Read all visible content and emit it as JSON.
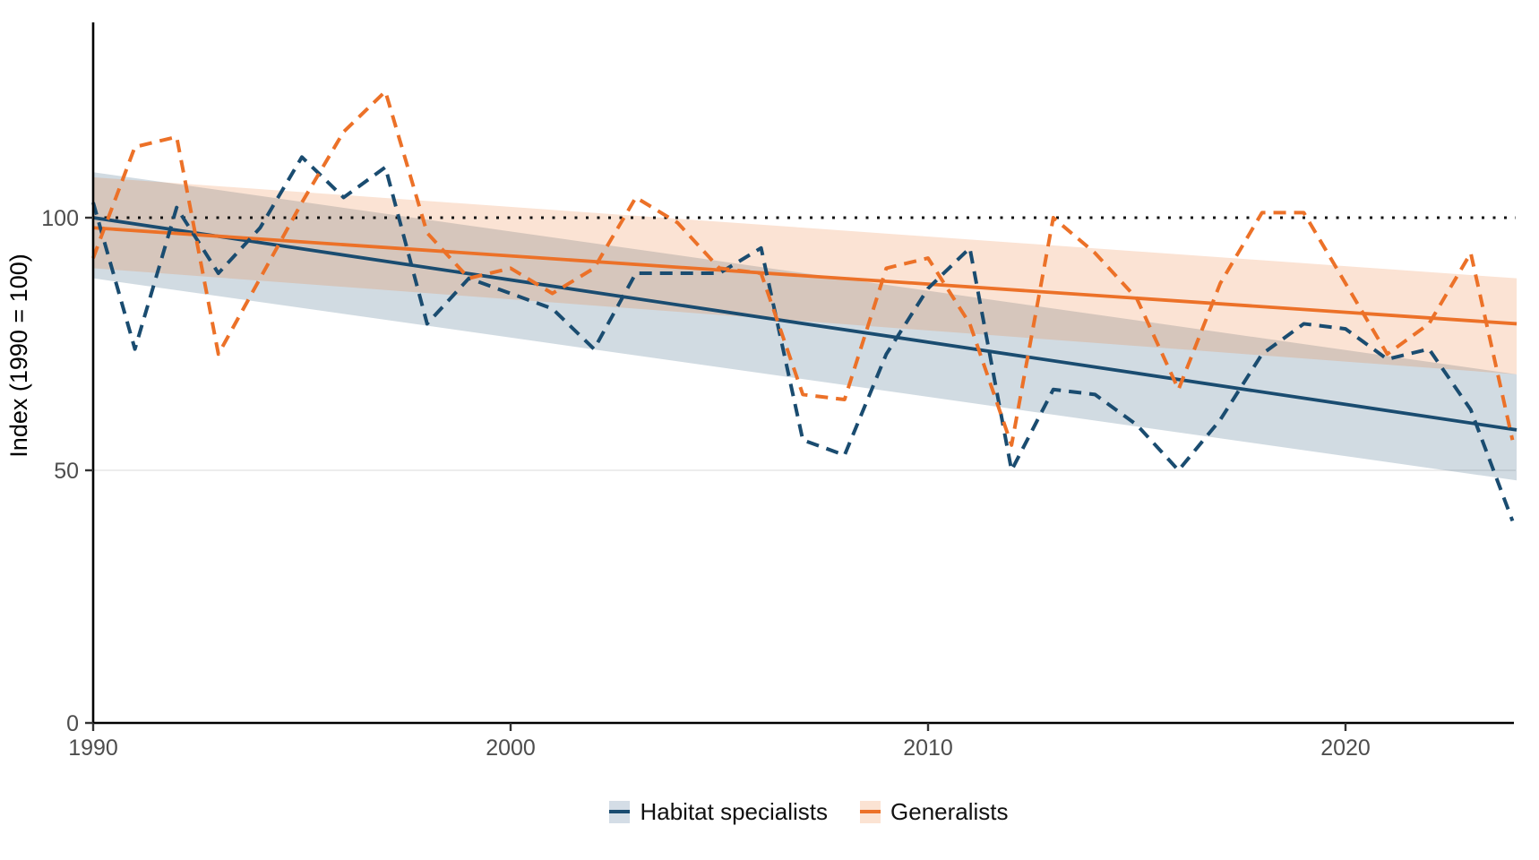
{
  "figure": {
    "y_axis_title": "Index (1990 = 100)",
    "background_color": "#ffffff",
    "axis_color": "#000000",
    "tick_label_color": "#4d4d4d",
    "grid_color": "#e7e7e7",
    "reference_line_color": "#111111"
  },
  "legend": {
    "items": [
      {
        "label": "Habitat specialists",
        "line_color": "#1a4c70",
        "fill_color": "#d4dde6"
      },
      {
        "label": "Generalists",
        "line_color": "#ec7128",
        "fill_color": "#fbe3d3"
      }
    ]
  },
  "chart_data": {
    "type": "line",
    "title": "",
    "xlabel": "",
    "ylabel": "Index (1990 = 100)",
    "xlim": [
      1990,
      2024.1
    ],
    "ylim": [
      0,
      138.5
    ],
    "x_ticks": [
      1990,
      2000,
      2010,
      2020
    ],
    "y_ticks": [
      0,
      50,
      100
    ],
    "grid": "single light horizontal gridline at y=50",
    "legend_position": "bottom",
    "reference_line_y": 100,
    "years": [
      1990,
      1991,
      1992,
      1993,
      1994,
      1995,
      1996,
      1997,
      1998,
      1999,
      2000,
      2001,
      2002,
      2003,
      2004,
      2005,
      2006,
      2007,
      2008,
      2009,
      2010,
      2011,
      2012,
      2013,
      2014,
      2015,
      2016,
      2017,
      2018,
      2019,
      2020,
      2021,
      2022,
      2023,
      2024
    ],
    "series": [
      {
        "name": "Habitat specialists",
        "style": "dashed",
        "color": "#1a4c70",
        "values": [
          103,
          74,
          102,
          89,
          98,
          112,
          104,
          110,
          79,
          88,
          85,
          82,
          74,
          89,
          89,
          89,
          94,
          56,
          53,
          73,
          86,
          94,
          50,
          66,
          65,
          59,
          50,
          60,
          73,
          79,
          78,
          72,
          74,
          62,
          40
        ]
      },
      {
        "name": "Generalists",
        "style": "dashed",
        "color": "#ec7128",
        "values": [
          92,
          114,
          116,
          73,
          88,
          103,
          117,
          125,
          97,
          88,
          90,
          85,
          90,
          104,
          99,
          90,
          89,
          65,
          64,
          90,
          92,
          79,
          55,
          100,
          93,
          84,
          66,
          87,
          101,
          101,
          87,
          73,
          79,
          93,
          56
        ]
      }
    ],
    "trend_lines": [
      {
        "name": "Habitat specialists trend",
        "color": "#1a4c70",
        "band_opacity": 0.2,
        "x_start": 1990,
        "x_end": 2024.1,
        "y_start": 100,
        "y_end": 58,
        "ci_upper": [
          109,
          69
        ],
        "ci_lower": [
          88,
          48
        ]
      },
      {
        "name": "Generalists trend",
        "color": "#ec7128",
        "band_opacity": 0.2,
        "x_start": 1990,
        "x_end": 2024.1,
        "y_start": 98,
        "y_end": 79,
        "ci_upper": [
          108,
          88
        ],
        "ci_lower": [
          90,
          69
        ]
      }
    ]
  }
}
